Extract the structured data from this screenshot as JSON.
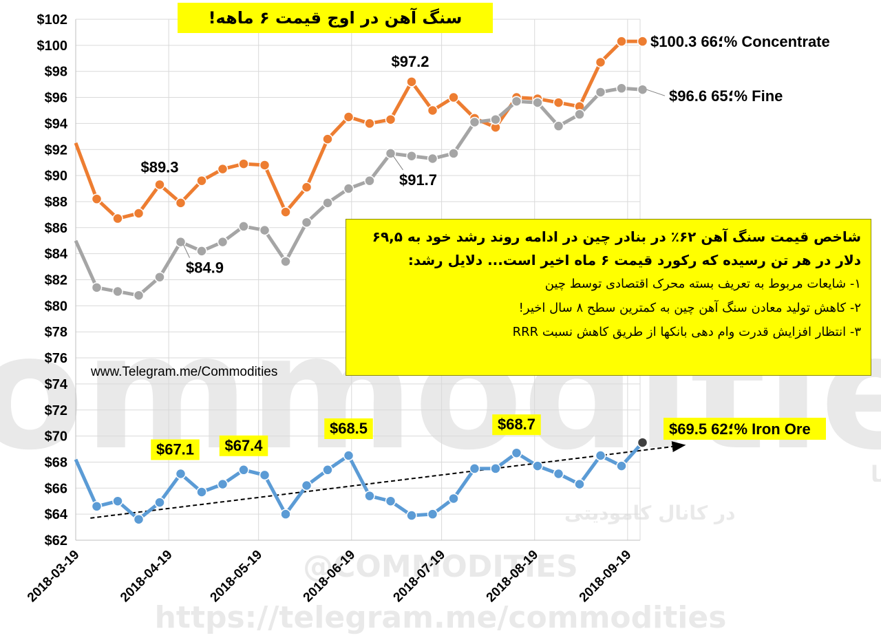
{
  "title": "سنگ آهن در اوج قیمت ۶ ماهه!",
  "site": "www.Telegram.me/Commodities",
  "watermarks": {
    "big": "Commodities",
    "persian_line1": "گزارشات تحلیلی و آنالیز بازار تجهیزات موسسات مالی و انرژی دنیا",
    "persian_line2": "در کانال کامودیتی",
    "handle": "@COMMODITIES",
    "url": "https://telegram.me/commodities"
  },
  "note": {
    "heading": "شاخص قیمت سنگ آهن ۶۲٪ در بنادر چین در ادامه روند رشد خود به ۶۹,۵ دلار در هر تن رسیده که رکورد قیمت ۶ ماه اخیر است... دلایل رشد:",
    "items": [
      "۱- شایعات مربوط به تعریف بسته محرک اقتصادی توسط چین",
      "۲- کاهش تولید معادن سنگ آهن چین به کمترین سطح ۸ سال اخیر!",
      "۳- انتظار افزایش قدرت وام دهی بانکها از طریق کاهش نسبت RRR"
    ]
  },
  "chart_data": {
    "type": "line",
    "x_start": "2018-03-19",
    "x_ticks": [
      "2018-03-19",
      "2018-04-19",
      "2018-05-19",
      "2018-06-19",
      "2018-07-19",
      "2018-08-19",
      "2018-09-19"
    ],
    "x_tick_weeks": [
      0,
      4.43,
      8.71,
      13.14,
      17.43,
      21.86,
      26.29
    ],
    "y_ticks": [
      "$62",
      "$64",
      "$66",
      "$68",
      "$70",
      "$72",
      "$74",
      "$76",
      "$78",
      "$80",
      "$82",
      "$84",
      "$86",
      "$88",
      "$90",
      "$92",
      "$94",
      "$96",
      "$98",
      "$100",
      "$102"
    ],
    "ylim": [
      62,
      102
    ],
    "grid": true,
    "series": [
      {
        "name": "66% Concentrate",
        "color": "#ED7D31",
        "values": [
          92.5,
          88.2,
          86.7,
          87.1,
          89.3,
          87.9,
          89.6,
          90.5,
          90.9,
          90.8,
          87.2,
          89.1,
          92.8,
          94.5,
          94.0,
          94.3,
          97.2,
          95.0,
          96.0,
          94.4,
          93.7,
          96.0,
          95.9,
          95.6,
          95.3,
          98.7,
          100.3,
          100.3
        ],
        "end_label": "$100.3 ؛66% Concentrate",
        "point_labels": [
          {
            "index": 4,
            "text": "$89.3"
          },
          {
            "index": 16,
            "text": "$97.2"
          }
        ]
      },
      {
        "name": "65% Fine",
        "color": "#A5A5A5",
        "values": [
          85.0,
          81.4,
          81.1,
          80.8,
          82.2,
          84.9,
          84.2,
          84.9,
          86.1,
          85.8,
          83.4,
          86.4,
          87.9,
          89.0,
          89.6,
          91.7,
          91.5,
          91.3,
          91.7,
          94.1,
          94.3,
          95.7,
          95.6,
          93.8,
          94.7,
          96.4,
          96.7,
          96.6
        ],
        "end_label": "$96.6 ؛65% Fine",
        "point_labels": [
          {
            "index": 5,
            "text": "$84.9"
          },
          {
            "index": 15,
            "text": "$91.7"
          }
        ]
      },
      {
        "name": "62% Iron Ore",
        "color": "#5B9BD5",
        "values": [
          68.2,
          64.6,
          65.0,
          63.6,
          64.9,
          67.1,
          65.7,
          66.3,
          67.4,
          67.0,
          64.0,
          66.2,
          67.4,
          68.5,
          65.4,
          65.0,
          63.9,
          64.0,
          65.2,
          67.5,
          67.5,
          68.7,
          67.7,
          67.1,
          66.3,
          68.5,
          67.7,
          69.5
        ],
        "end_label": "$69.5 ؛62% Iron Ore",
        "point_labels": [
          {
            "index": 5,
            "text": "$67.1"
          },
          {
            "index": 8,
            "text": "$67.4"
          },
          {
            "index": 13,
            "text": "$68.5"
          },
          {
            "index": 21,
            "text": "$68.7"
          }
        ]
      }
    ],
    "trendline": {
      "series": "62% Iron Ore",
      "from": [
        0.7,
        63.7
      ],
      "to": [
        29,
        69.3
      ],
      "style": "dashed-arrow"
    }
  }
}
